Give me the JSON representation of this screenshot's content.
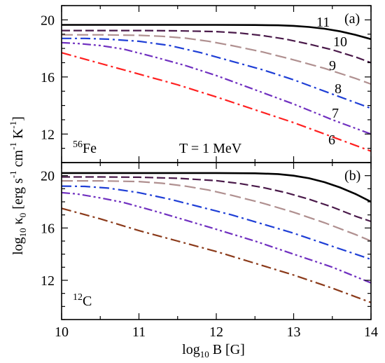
{
  "figure": {
    "ylabel": "log10 κ0 [erg s-1 cm-1 K-1]",
    "xlabel": "log10 B [G]"
  },
  "chart_data": [
    {
      "type": "line",
      "panel_label": "(a)",
      "annotations": [
        "56Fe",
        "T = 1 MeV"
      ],
      "xlim": [
        10,
        14
      ],
      "ylim": [
        10,
        21
      ],
      "xticks": [
        10,
        11,
        12,
        13,
        14
      ],
      "yticks": [
        12,
        16,
        20
      ],
      "grid": false,
      "series": [
        {
          "name": "11",
          "color": "#000000",
          "dash": "solid",
          "x": [
            10,
            10.5,
            11,
            11.5,
            12,
            12.5,
            12.8,
            13,
            13.2,
            13.4,
            13.6,
            13.8,
            14
          ],
          "y": [
            19.65,
            19.65,
            19.65,
            19.65,
            19.65,
            19.64,
            19.62,
            19.58,
            19.5,
            19.38,
            19.2,
            18.95,
            18.65
          ]
        },
        {
          "name": "10",
          "color": "#4a1a4a",
          "dash": "dashed",
          "x": [
            10,
            10.5,
            11,
            11.5,
            12,
            12.3,
            12.6,
            12.9,
            13.2,
            13.5,
            13.8,
            14
          ],
          "y": [
            19.25,
            19.25,
            19.25,
            19.23,
            19.18,
            19.08,
            18.9,
            18.65,
            18.3,
            17.9,
            17.4,
            17.0
          ]
        },
        {
          "name": "9",
          "color": "#b09090",
          "dash": "longdash",
          "x": [
            10,
            10.5,
            11,
            11.3,
            11.6,
            11.9,
            12.2,
            12.6,
            13,
            13.4,
            13.8,
            14
          ],
          "y": [
            18.95,
            18.95,
            18.92,
            18.85,
            18.72,
            18.5,
            18.2,
            17.75,
            17.2,
            16.6,
            15.9,
            15.5
          ]
        },
        {
          "name": "8",
          "color": "#1f3fd6",
          "dash": "dashdot",
          "x": [
            10,
            10.3,
            10.6,
            11,
            11.4,
            11.8,
            12.2,
            12.6,
            13,
            13.5,
            14
          ],
          "y": [
            18.7,
            18.7,
            18.65,
            18.5,
            18.2,
            17.7,
            17.1,
            16.5,
            15.8,
            14.8,
            13.8
          ]
        },
        {
          "name": "7",
          "color": "#7030c0",
          "dash": "dashdotdot",
          "x": [
            10,
            10.2,
            10.5,
            10.8,
            11.2,
            11.6,
            12,
            12.5,
            13,
            13.5,
            14
          ],
          "y": [
            18.4,
            18.35,
            18.2,
            17.95,
            17.4,
            16.8,
            16.1,
            15.1,
            14.1,
            13.0,
            12.0
          ]
        },
        {
          "name": "6",
          "color": "#ff2020",
          "dash": "dashdot",
          "x": [
            10,
            10.5,
            11,
            11.5,
            12,
            12.5,
            13,
            13.5,
            14
          ],
          "y": [
            17.7,
            16.95,
            16.2,
            15.45,
            14.6,
            13.7,
            12.8,
            11.8,
            10.8
          ]
        }
      ]
    },
    {
      "type": "line",
      "panel_label": "(b)",
      "annotations": [
        "12C"
      ],
      "xlim": [
        10,
        14
      ],
      "ylim": [
        9,
        21
      ],
      "xticks": [
        10,
        11,
        12,
        13,
        14
      ],
      "yticks": [
        12,
        16,
        20
      ],
      "grid": false,
      "series": [
        {
          "color": "#000000",
          "dash": "solid",
          "x": [
            10,
            10.5,
            11,
            11.5,
            12,
            12.5,
            12.8,
            13,
            13.2,
            13.4,
            13.6,
            13.8,
            14
          ],
          "y": [
            20.2,
            20.2,
            20.2,
            20.2,
            20.2,
            20.18,
            20.12,
            20.0,
            19.8,
            19.5,
            19.1,
            18.6,
            18.0
          ]
        },
        {
          "color": "#4a1a4a",
          "dash": "dashed",
          "x": [
            10,
            10.5,
            11,
            11.5,
            12,
            12.3,
            12.6,
            12.9,
            13.2,
            13.5,
            13.8,
            14
          ],
          "y": [
            19.9,
            19.9,
            19.88,
            19.8,
            19.62,
            19.4,
            19.1,
            18.7,
            18.2,
            17.6,
            16.9,
            16.5
          ]
        },
        {
          "color": "#b09090",
          "dash": "longdash",
          "x": [
            10,
            10.5,
            11,
            11.3,
            11.6,
            11.9,
            12.2,
            12.6,
            13,
            13.4,
            13.8,
            14
          ],
          "y": [
            19.6,
            19.6,
            19.55,
            19.42,
            19.2,
            18.9,
            18.5,
            17.9,
            17.2,
            16.4,
            15.5,
            15.0
          ]
        },
        {
          "color": "#1f3fd6",
          "dash": "dashdot",
          "x": [
            10,
            10.3,
            10.6,
            11,
            11.4,
            11.8,
            12.2,
            12.6,
            13,
            13.5,
            14
          ],
          "y": [
            19.2,
            19.18,
            19.05,
            18.7,
            18.2,
            17.6,
            17.0,
            16.3,
            15.6,
            14.6,
            13.6
          ]
        },
        {
          "color": "#7030c0",
          "dash": "dashdotdot",
          "x": [
            10,
            10.2,
            10.5,
            10.8,
            11.2,
            11.6,
            12,
            12.5,
            13,
            13.5,
            14
          ],
          "y": [
            18.7,
            18.6,
            18.3,
            17.95,
            17.3,
            16.6,
            15.9,
            15.0,
            14.0,
            13.0,
            11.8
          ]
        },
        {
          "color": "#8b3a1a",
          "dash": "dashdot",
          "x": [
            10,
            10.5,
            11,
            11.5,
            12,
            12.5,
            13,
            13.5,
            14
          ],
          "y": [
            17.5,
            16.7,
            15.8,
            15.0,
            14.2,
            13.3,
            12.4,
            11.4,
            10.3
          ]
        }
      ]
    }
  ]
}
